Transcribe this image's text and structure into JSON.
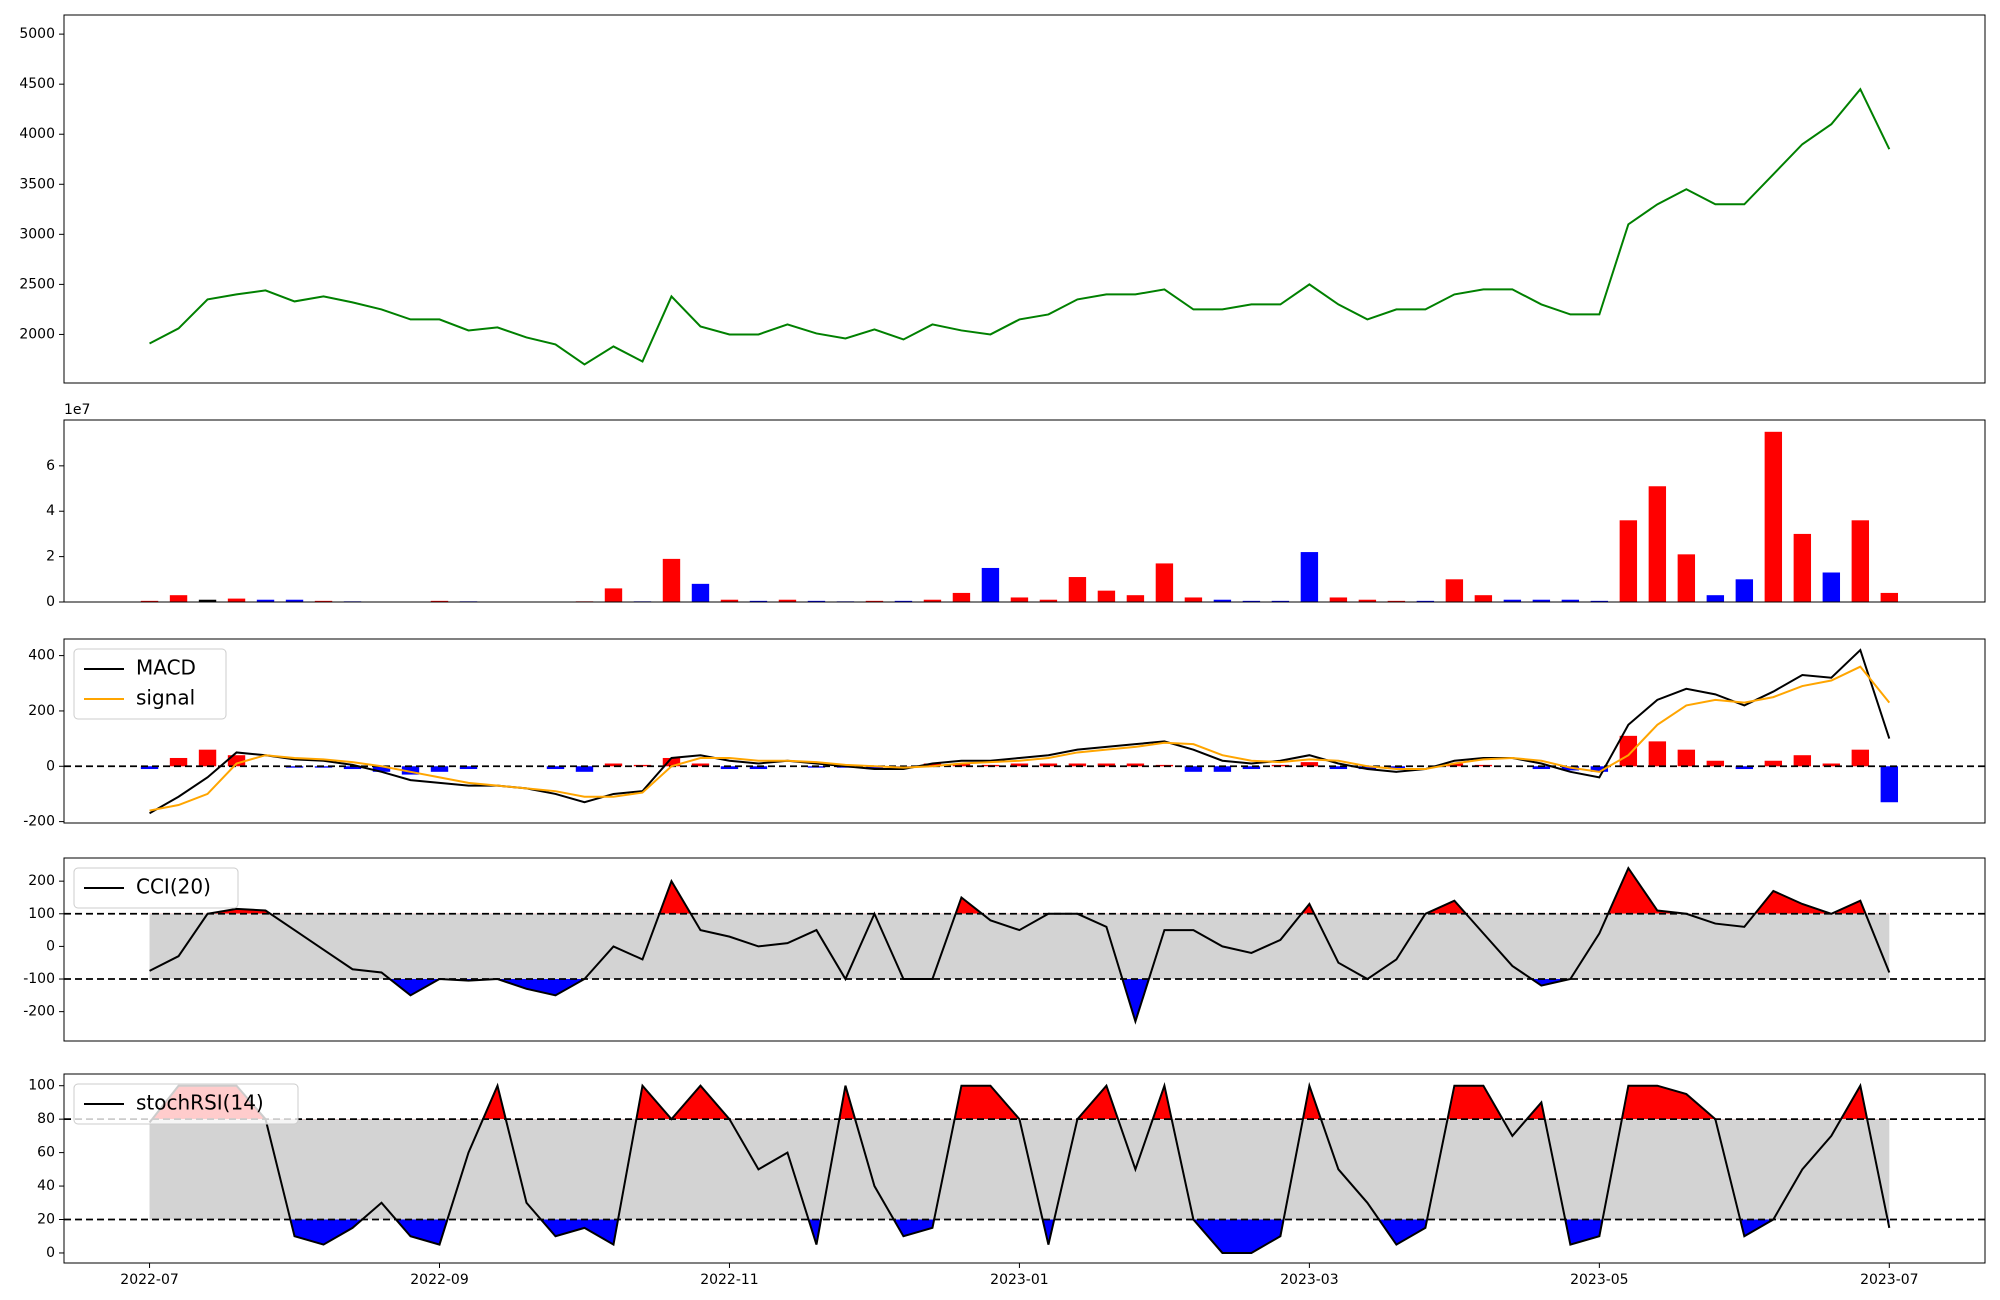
{
  "chart_data": [
    {
      "type": "line",
      "x": [
        0,
        0.2,
        0.4,
        0.6,
        0.8,
        1,
        1.2,
        1.4,
        1.6,
        1.8,
        2,
        2.2,
        2.4,
        2.6,
        2.8,
        3,
        3.2,
        3.4,
        3.6,
        3.8,
        4,
        4.2,
        4.4,
        4.6,
        4.8,
        5,
        5.2,
        5.4,
        5.6,
        5.8,
        6,
        6.2,
        6.4,
        6.6,
        6.8,
        7,
        7.2,
        7.4,
        7.6,
        7.8,
        8,
        8.2,
        8.4,
        8.6,
        8.8,
        9,
        9.2,
        9.4,
        9.6,
        9.8,
        10,
        10.2,
        10.4,
        10.6,
        10.8,
        11,
        11.2,
        11.4,
        11.6,
        11.8,
        12
      ],
      "xlim": [
        -0.59,
        12.66
      ],
      "series": [
        {
          "color": "#008000",
          "values": [
            1910,
            2060,
            2350,
            2400,
            2440,
            2330,
            2380,
            2320,
            2250,
            2150,
            2150,
            2040,
            2070,
            1970,
            1900,
            1700,
            1880,
            1730,
            2380,
            2080,
            2000,
            2000,
            2100,
            2010,
            1960,
            2050,
            1950,
            2100,
            2040,
            2000,
            2150,
            2200,
            2350,
            2400,
            2400,
            2450,
            2250,
            2250,
            2300,
            2300,
            2500,
            2300,
            2150,
            2250,
            2250,
            2400,
            2450,
            2450,
            2300,
            2200,
            2200,
            3100,
            3300,
            3450,
            3300,
            3300,
            3600,
            3900,
            4100,
            4450,
            3850
          ]
        }
      ],
      "ylim": [
        1515,
        5191
      ],
      "yticks": [
        2000,
        2500,
        3000,
        3500,
        4000,
        4500,
        5000
      ]
    },
    {
      "type": "bar",
      "x": [
        0,
        0.2,
        0.4,
        0.6,
        0.8,
        1,
        1.2,
        1.4,
        1.6,
        1.8,
        2,
        2.2,
        2.4,
        2.6,
        2.8,
        3,
        3.2,
        3.4,
        3.6,
        3.8,
        4,
        4.2,
        4.4,
        4.6,
        4.8,
        5,
        5.2,
        5.4,
        5.6,
        5.8,
        6,
        6.2,
        6.4,
        6.6,
        6.8,
        7,
        7.2,
        7.4,
        7.6,
        7.8,
        8,
        8.2,
        8.4,
        8.6,
        8.8,
        9,
        9.2,
        9.4,
        9.6,
        9.8,
        10,
        10.2,
        10.4,
        10.6,
        10.8,
        11,
        11.2,
        11.4,
        11.6,
        11.8,
        12
      ],
      "xlim": [
        -0.59,
        12.66
      ],
      "values": [
        500000,
        3000000,
        1000000,
        1500000,
        1000000,
        1000000,
        500000,
        300000,
        200000,
        200000,
        500000,
        300000,
        200000,
        200000,
        200000,
        300000,
        6000000,
        300000,
        19000000,
        8000000,
        1000000,
        500000,
        1000000,
        500000,
        300000,
        500000,
        500000,
        1000000,
        4000000,
        15000000,
        2000000,
        1000000,
        11000000,
        5000000,
        3000000,
        17000000,
        2000000,
        1000000,
        500000,
        500000,
        22000000,
        2000000,
        1000000,
        500000,
        500000,
        10000000,
        3000000,
        1000000,
        1000000,
        1000000,
        500000,
        36000000,
        51000000,
        21000000,
        3000000,
        10000000,
        75000000,
        30000000,
        13000000,
        36000000,
        4000000
      ],
      "colors": [
        "#ff0000",
        "#ff0000",
        "#000000",
        "#ff0000",
        "#0000ff",
        "#0000ff",
        "#ff0000",
        "#0000ff",
        "#0000ff",
        "#0000ff",
        "#ff0000",
        "#0000ff",
        "#0000ff",
        "#0000ff",
        "#0000ff",
        "#ff0000",
        "#ff0000",
        "#0000ff",
        "#ff0000",
        "#0000ff",
        "#ff0000",
        "#0000ff",
        "#ff0000",
        "#0000ff",
        "#0000ff",
        "#ff0000",
        "#0000ff",
        "#ff0000",
        "#ff0000",
        "#0000ff",
        "#ff0000",
        "#ff0000",
        "#ff0000",
        "#ff0000",
        "#ff0000",
        "#ff0000",
        "#ff0000",
        "#0000ff",
        "#0000ff",
        "#0000ff",
        "#0000ff",
        "#ff0000",
        "#ff0000",
        "#ff0000",
        "#0000ff",
        "#ff0000",
        "#ff0000",
        "#0000ff",
        "#0000ff",
        "#0000ff",
        "#0000ff",
        "#ff0000",
        "#ff0000",
        "#ff0000",
        "#0000ff",
        "#0000ff",
        "#ff0000",
        "#ff0000",
        "#0000ff",
        "#ff0000",
        "#ff0000"
      ],
      "ylim": [
        0,
        80200000
      ],
      "yticks": [
        0,
        {
          "value": 20000000,
          "label": "2"
        },
        {
          "value": 40000000,
          "label": "4"
        },
        {
          "value": 60000000,
          "label": "6"
        }
      ],
      "offset_text": "1e7"
    },
    {
      "type": "line",
      "x": [
        0,
        0.2,
        0.4,
        0.6,
        0.8,
        1,
        1.2,
        1.4,
        1.6,
        1.8,
        2,
        2.2,
        2.4,
        2.6,
        2.8,
        3,
        3.2,
        3.4,
        3.6,
        3.8,
        4,
        4.2,
        4.4,
        4.6,
        4.8,
        5,
        5.2,
        5.4,
        5.6,
        5.8,
        6,
        6.2,
        6.4,
        6.6,
        6.8,
        7,
        7.2,
        7.4,
        7.6,
        7.8,
        8,
        8.2,
        8.4,
        8.6,
        8.8,
        9,
        9.2,
        9.4,
        9.6,
        9.8,
        10,
        10.2,
        10.4,
        10.6,
        10.8,
        11,
        11.2,
        11.4,
        11.6,
        11.8,
        12
      ],
      "xlim": [
        -0.59,
        12.66
      ],
      "series": [
        {
          "name": "MACD",
          "color": "#000000",
          "values": [
            -170,
            -110,
            -40,
            50,
            40,
            25,
            20,
            5,
            -20,
            -50,
            -60,
            -70,
            -70,
            -80,
            -100,
            -130,
            -100,
            -90,
            30,
            40,
            20,
            10,
            20,
            10,
            0,
            -10,
            -10,
            10,
            20,
            20,
            30,
            40,
            60,
            70,
            80,
            90,
            60,
            20,
            10,
            20,
            40,
            10,
            -10,
            -20,
            -10,
            20,
            30,
            30,
            10,
            -20,
            -40,
            150,
            240,
            280,
            260,
            220,
            270,
            330,
            320,
            420,
            100
          ]
        },
        {
          "name": "signal",
          "color": "#ffa500",
          "values": [
            -160,
            -140,
            -100,
            10,
            40,
            30,
            25,
            15,
            0,
            -20,
            -40,
            -60,
            -70,
            -80,
            -90,
            -110,
            -110,
            -95,
            0,
            30,
            30,
            20,
            20,
            15,
            5,
            0,
            -5,
            0,
            10,
            15,
            20,
            30,
            50,
            60,
            70,
            85,
            80,
            40,
            20,
            15,
            25,
            20,
            0,
            -10,
            -10,
            10,
            25,
            30,
            20,
            -5,
            -20,
            40,
            150,
            220,
            240,
            230,
            250,
            290,
            310,
            360,
            230
          ]
        }
      ],
      "bars": {
        "up_color": "#ff0000",
        "down_color": "#0000ff",
        "values": [
          -10,
          30,
          60,
          40,
          0,
          -5,
          -5,
          -10,
          -20,
          -30,
          -20,
          -10,
          0,
          0,
          -10,
          -20,
          10,
          5,
          30,
          10,
          -10,
          -10,
          0,
          -5,
          -5,
          -10,
          -5,
          10,
          10,
          5,
          10,
          10,
          10,
          10,
          10,
          5,
          -20,
          -20,
          -10,
          5,
          15,
          -10,
          -10,
          -10,
          0,
          10,
          5,
          0,
          -10,
          -15,
          -20,
          110,
          90,
          60,
          20,
          -10,
          20,
          40,
          10,
          60,
          -130
        ]
      },
      "levels": [
        0
      ],
      "ylim": [
        -205,
        460
      ],
      "yticks": [
        -200,
        0,
        200,
        400
      ],
      "legend": "upper left"
    },
    {
      "type": "line",
      "x": [
        0,
        0.2,
        0.4,
        0.6,
        0.8,
        1,
        1.2,
        1.4,
        1.6,
        1.8,
        2,
        2.2,
        2.4,
        2.6,
        2.8,
        3,
        3.2,
        3.4,
        3.6,
        3.8,
        4,
        4.2,
        4.4,
        4.6,
        4.8,
        5,
        5.2,
        5.4,
        5.6,
        5.8,
        6,
        6.2,
        6.4,
        6.6,
        6.8,
        7,
        7.2,
        7.4,
        7.6,
        7.8,
        8,
        8.2,
        8.4,
        8.6,
        8.8,
        9,
        9.2,
        9.4,
        9.6,
        9.8,
        10,
        10.2,
        10.4,
        10.6,
        10.8,
        11,
        11.2,
        11.4,
        11.6,
        11.8,
        12
      ],
      "xlim": [
        -0.59,
        12.66
      ],
      "series": [
        {
          "name": "CCI(20)",
          "color": "#000000",
          "values": [
            -75,
            -30,
            100,
            115,
            110,
            50,
            -10,
            -70,
            -80,
            -150,
            -100,
            -105,
            -100,
            -130,
            -150,
            -100,
            0,
            -40,
            200,
            50,
            30,
            0,
            10,
            50,
            -100,
            100,
            -100,
            -100,
            150,
            80,
            50,
            100,
            100,
            60,
            -230,
            50,
            50,
            0,
            -20,
            20,
            130,
            -50,
            -100,
            -40,
            100,
            140,
            40,
            -60,
            -120,
            -100,
            40,
            240,
            110,
            100,
            70,
            60,
            170,
            130,
            100,
            140,
            -80
          ]
        }
      ],
      "levels": [
        -100,
        100
      ],
      "band_color": "#d3d3d3",
      "over_color": "#ff0000",
      "under_color": "#0000ff",
      "ylim": [
        -290,
        271
      ],
      "yticks": [
        -200,
        -100,
        0,
        100,
        200
      ],
      "legend": "upper left"
    },
    {
      "type": "line",
      "x": [
        0,
        0.2,
        0.4,
        0.6,
        0.8,
        1,
        1.2,
        1.4,
        1.6,
        1.8,
        2,
        2.2,
        2.4,
        2.6,
        2.8,
        3,
        3.2,
        3.4,
        3.6,
        3.8,
        4,
        4.2,
        4.4,
        4.6,
        4.8,
        5,
        5.2,
        5.4,
        5.6,
        5.8,
        6,
        6.2,
        6.4,
        6.6,
        6.8,
        7,
        7.2,
        7.4,
        7.6,
        7.8,
        8,
        8.2,
        8.4,
        8.6,
        8.8,
        9,
        9.2,
        9.4,
        9.6,
        9.8,
        10,
        10.2,
        10.4,
        10.6,
        10.8,
        11,
        11.2,
        11.4,
        11.6,
        11.8,
        12
      ],
      "xlim": [
        -0.59,
        12.66
      ],
      "series": [
        {
          "name": "stochRSI(14)",
          "color": "#000000",
          "values": [
            78,
            100,
            100,
            100,
            80,
            10,
            5,
            15,
            30,
            10,
            5,
            60,
            100,
            30,
            10,
            15,
            5,
            100,
            80,
            100,
            80,
            50,
            60,
            5,
            100,
            40,
            10,
            15,
            100,
            100,
            80,
            5,
            80,
            100,
            50,
            100,
            20,
            0,
            0,
            10,
            100,
            50,
            30,
            5,
            15,
            100,
            100,
            70,
            90,
            5,
            10,
            100,
            100,
            95,
            80,
            10,
            20,
            50,
            70,
            100,
            15
          ]
        }
      ],
      "levels": [
        20,
        80
      ],
      "band_color": "#d3d3d3",
      "over_color": "#ff0000",
      "under_color": "#0000ff",
      "ylim": [
        -6,
        107
      ],
      "yticks": [
        0,
        20,
        40,
        60,
        80,
        100
      ],
      "xticks": [
        {
          "value": 0,
          "label": "2022-07"
        },
        {
          "value": 2,
          "label": "2022-09"
        },
        {
          "value": 4,
          "label": "2022-11"
        },
        {
          "value": 6,
          "label": "2023-01"
        },
        {
          "value": 8,
          "label": "2023-03"
        },
        {
          "value": 10,
          "label": "2023-05"
        },
        {
          "value": 12,
          "label": "2023-07"
        }
      ],
      "legend": "upper left"
    }
  ]
}
